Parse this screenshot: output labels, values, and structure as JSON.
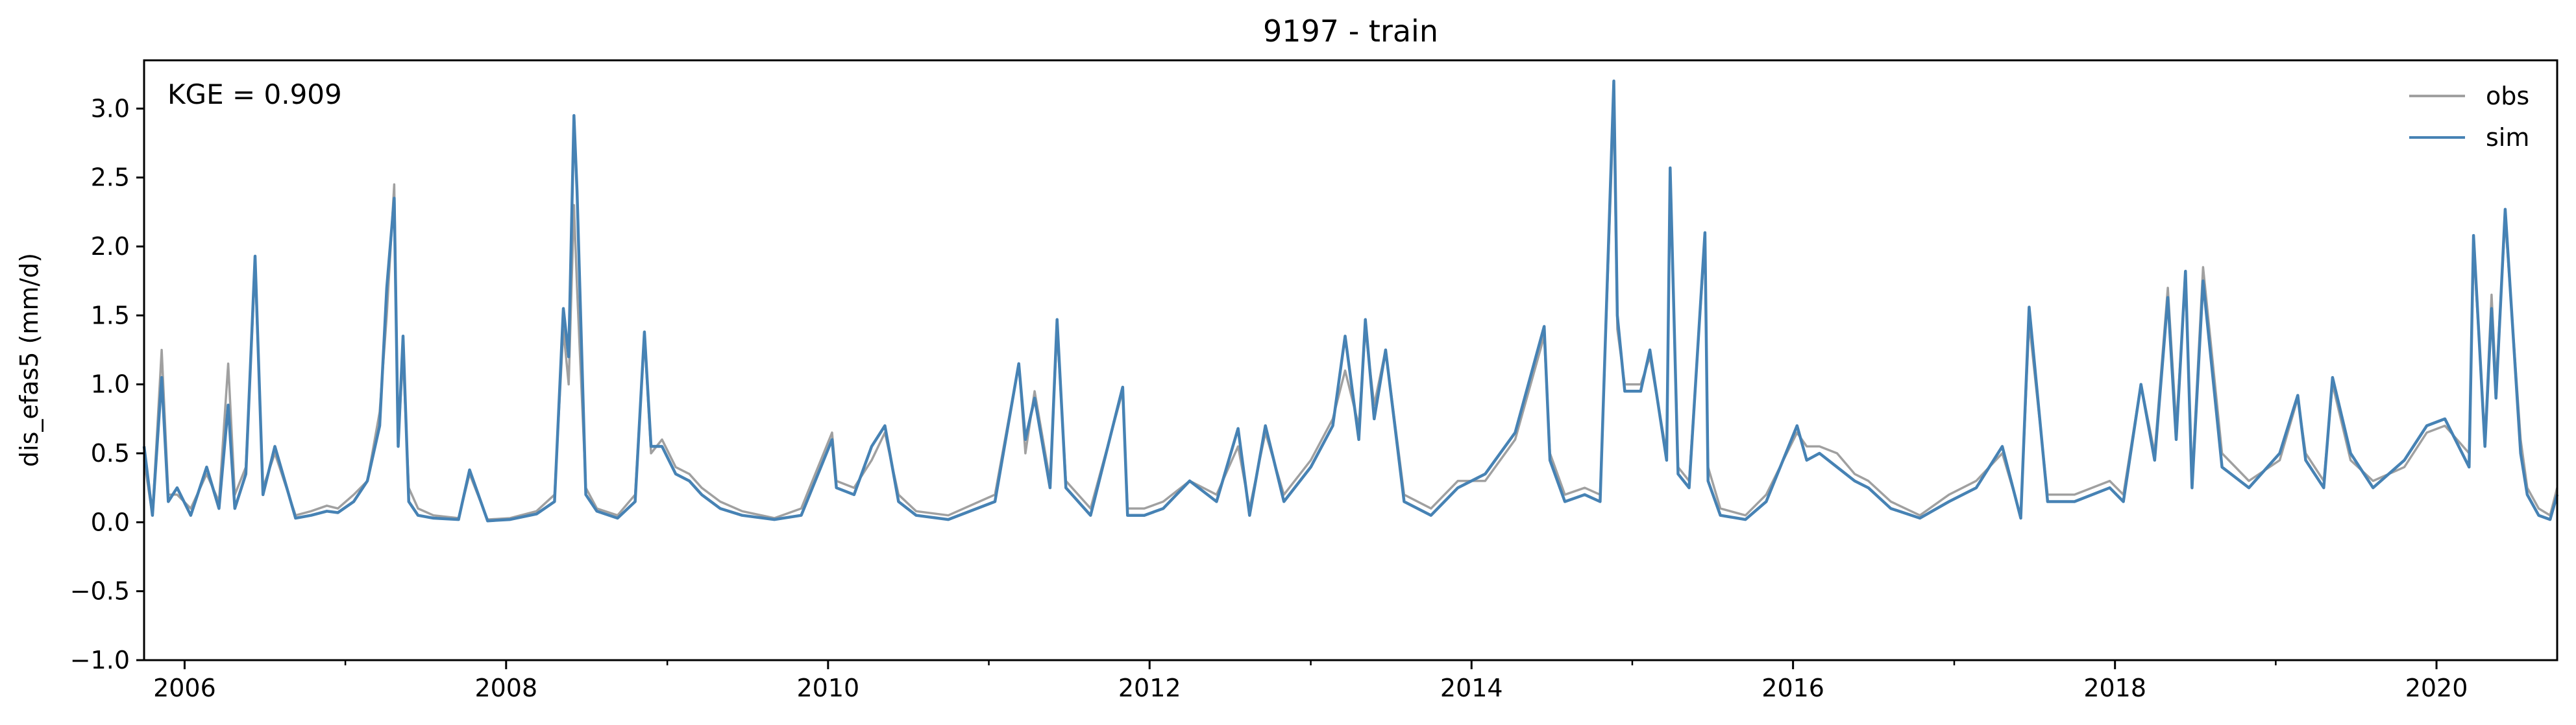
{
  "chart_data": {
    "type": "line",
    "title": "9197 - train",
    "ylabel": "dis_efas5 (mm/d)",
    "xlabel": "",
    "annotation": "KGE = 0.909",
    "xlim": [
      "2005-10-01",
      "2020-10-01"
    ],
    "ylim": [
      -1.0,
      3.35
    ],
    "yticks": [
      -1.0,
      -0.5,
      0.0,
      0.5,
      1.0,
      1.5,
      2.0,
      2.5,
      3.0
    ],
    "ytick_labels": [
      "−1.0",
      "−0.5",
      "0.0",
      "0.5",
      "1.0",
      "1.5",
      "2.0",
      "2.5",
      "3.0"
    ],
    "xticks_major": [
      "2006-01-01",
      "2008-01-01",
      "2010-01-01",
      "2012-01-01",
      "2014-01-01",
      "2016-01-01",
      "2018-01-01",
      "2020-01-01"
    ],
    "xtick_labels": [
      "2006",
      "2008",
      "2010",
      "2012",
      "2014",
      "2016",
      "2018",
      "2020"
    ],
    "xticks_minor": [
      "2007-01-01",
      "2009-01-01",
      "2011-01-01",
      "2013-01-01",
      "2015-01-01",
      "2017-01-01",
      "2019-01-01"
    ],
    "grid": false,
    "legend": "top-right",
    "series": [
      {
        "name": "obs",
        "color": "#a0a0a0",
        "x": [
          "2005-10-01",
          "2005-10-20",
          "2005-11-10",
          "2005-11-25",
          "2005-12-15",
          "2006-01-15",
          "2006-02-20",
          "2006-03-20",
          "2006-04-10",
          "2006-04-25",
          "2006-05-20",
          "2006-06-10",
          "2006-06-28",
          "2006-07-25",
          "2006-09-10",
          "2006-10-15",
          "2006-11-20",
          "2006-12-15",
          "2007-01-20",
          "2007-02-20",
          "2007-03-20",
          "2007-04-05",
          "2007-04-22",
          "2007-05-01",
          "2007-05-12",
          "2007-05-25",
          "2007-06-15",
          "2007-07-20",
          "2007-09-15",
          "2007-10-10",
          "2007-11-20",
          "2008-01-10",
          "2008-03-10",
          "2008-04-20",
          "2008-05-10",
          "2008-05-22",
          "2008-06-03",
          "2008-06-10",
          "2008-06-30",
          "2008-07-25",
          "2008-09-10",
          "2008-10-20",
          "2008-11-10",
          "2008-11-25",
          "2008-12-20",
          "2009-01-20",
          "2009-02-20",
          "2009-03-20",
          "2009-05-01",
          "2009-06-20",
          "2009-09-01",
          "2009-11-01",
          "2010-01-10",
          "2010-01-20",
          "2010-03-01",
          "2010-04-10",
          "2010-05-10",
          "2010-06-10",
          "2010-07-20",
          "2010-10-01",
          "2011-01-15",
          "2011-03-10",
          "2011-03-25",
          "2011-04-15",
          "2011-05-20",
          "2011-06-05",
          "2011-06-25",
          "2011-08-20",
          "2011-11-01",
          "2011-11-12",
          "2011-12-20",
          "2012-02-01",
          "2012-04-01",
          "2012-06-01",
          "2012-07-20",
          "2012-08-15",
          "2012-09-20",
          "2012-11-01",
          "2013-01-01",
          "2013-02-20",
          "2013-03-20",
          "2013-04-20",
          "2013-05-05",
          "2013-05-25",
          "2013-06-20",
          "2013-08-01",
          "2013-10-01",
          "2013-12-01",
          "2014-02-01",
          "2014-04-10",
          "2014-06-15",
          "2014-06-28",
          "2014-08-01",
          "2014-09-15",
          "2014-10-20",
          "2014-11-20",
          "2014-11-28",
          "2014-12-15",
          "2015-01-20",
          "2015-02-10",
          "2015-03-20",
          "2015-03-28",
          "2015-04-15",
          "2015-05-10",
          "2015-06-15",
          "2015-06-22",
          "2015-07-20",
          "2015-09-15",
          "2015-11-01",
          "2016-01-10",
          "2016-02-01",
          "2016-03-01",
          "2016-04-10",
          "2016-05-20",
          "2016-06-20",
          "2016-08-10",
          "2016-10-15",
          "2016-12-20",
          "2017-02-20",
          "2017-04-20",
          "2017-06-01",
          "2017-06-20",
          "2017-08-01",
          "2017-10-01",
          "2017-12-20",
          "2018-01-20",
          "2018-03-01",
          "2018-04-01",
          "2018-05-01",
          "2018-05-20",
          "2018-06-10",
          "2018-06-25",
          "2018-07-20",
          "2018-09-01",
          "2018-11-01",
          "2019-01-10",
          "2019-02-20",
          "2019-03-10",
          "2019-04-20",
          "2019-05-10",
          "2019-06-20",
          "2019-08-10",
          "2019-10-20",
          "2019-12-10",
          "2020-01-20",
          "2020-03-15",
          "2020-03-25",
          "2020-04-20",
          "2020-05-05",
          "2020-05-15",
          "2020-06-05",
          "2020-07-10",
          "2020-07-25",
          "2020-08-20",
          "2020-09-15",
          "2020-10-01"
        ],
        "y": [
          0.45,
          0.05,
          1.25,
          0.2,
          0.2,
          0.1,
          0.35,
          0.15,
          1.15,
          0.2,
          0.4,
          1.85,
          0.25,
          0.5,
          0.05,
          0.08,
          0.12,
          0.1,
          0.2,
          0.3,
          0.8,
          1.5,
          2.45,
          0.6,
          1.2,
          0.25,
          0.1,
          0.05,
          0.03,
          0.35,
          0.02,
          0.03,
          0.08,
          0.2,
          1.4,
          1.0,
          2.3,
          1.7,
          0.25,
          0.1,
          0.05,
          0.2,
          1.35,
          0.5,
          0.6,
          0.4,
          0.35,
          0.25,
          0.15,
          0.08,
          0.03,
          0.1,
          0.65,
          0.3,
          0.25,
          0.45,
          0.65,
          0.2,
          0.08,
          0.05,
          0.2,
          1.15,
          0.5,
          0.95,
          0.3,
          1.4,
          0.3,
          0.1,
          0.95,
          0.1,
          0.1,
          0.15,
          0.3,
          0.2,
          0.55,
          0.1,
          0.65,
          0.2,
          0.45,
          0.75,
          1.1,
          0.7,
          1.4,
          0.85,
          1.25,
          0.2,
          0.1,
          0.3,
          0.3,
          0.6,
          1.35,
          0.5,
          0.2,
          0.25,
          0.2,
          3.05,
          1.4,
          1.0,
          1.0,
          1.2,
          0.5,
          2.5,
          0.4,
          0.3,
          2.05,
          0.4,
          0.1,
          0.05,
          0.2,
          0.65,
          0.55,
          0.55,
          0.5,
          0.35,
          0.3,
          0.15,
          0.05,
          0.2,
          0.3,
          0.5,
          0.05,
          1.45,
          0.2,
          0.2,
          0.3,
          0.2,
          1.0,
          0.5,
          1.7,
          0.7,
          1.75,
          0.3,
          1.85,
          0.5,
          0.3,
          0.45,
          0.9,
          0.5,
          0.3,
          1.0,
          0.45,
          0.3,
          0.4,
          0.65,
          0.7,
          0.5,
          2.0,
          0.6,
          1.65,
          1.0,
          2.2,
          0.6,
          0.25,
          0.1,
          0.05,
          0.25
        ]
      },
      {
        "name": "sim",
        "color": "#4682b4",
        "x": [
          "2005-10-01",
          "2005-10-20",
          "2005-11-10",
          "2005-11-25",
          "2005-12-15",
          "2006-01-15",
          "2006-02-20",
          "2006-03-20",
          "2006-04-10",
          "2006-04-25",
          "2006-05-20",
          "2006-06-10",
          "2006-06-28",
          "2006-07-25",
          "2006-09-10",
          "2006-10-15",
          "2006-11-20",
          "2006-12-15",
          "2007-01-20",
          "2007-02-20",
          "2007-03-20",
          "2007-04-05",
          "2007-04-22",
          "2007-05-01",
          "2007-05-12",
          "2007-05-25",
          "2007-06-15",
          "2007-07-20",
          "2007-09-15",
          "2007-10-10",
          "2007-11-20",
          "2008-01-10",
          "2008-03-10",
          "2008-04-20",
          "2008-05-10",
          "2008-05-22",
          "2008-06-03",
          "2008-06-10",
          "2008-06-30",
          "2008-07-25",
          "2008-09-10",
          "2008-10-20",
          "2008-11-10",
          "2008-11-25",
          "2008-12-20",
          "2009-01-20",
          "2009-02-20",
          "2009-03-20",
          "2009-05-01",
          "2009-06-20",
          "2009-09-01",
          "2009-11-01",
          "2010-01-10",
          "2010-01-20",
          "2010-03-01",
          "2010-04-10",
          "2010-05-10",
          "2010-06-10",
          "2010-07-20",
          "2010-10-01",
          "2011-01-15",
          "2011-03-10",
          "2011-03-25",
          "2011-04-15",
          "2011-05-20",
          "2011-06-05",
          "2011-06-25",
          "2011-08-20",
          "2011-11-01",
          "2011-11-12",
          "2011-12-20",
          "2012-02-01",
          "2012-04-01",
          "2012-06-01",
          "2012-07-20",
          "2012-08-15",
          "2012-09-20",
          "2012-11-01",
          "2013-01-01",
          "2013-02-20",
          "2013-03-20",
          "2013-04-20",
          "2013-05-05",
          "2013-05-25",
          "2013-06-20",
          "2013-08-01",
          "2013-10-01",
          "2013-12-01",
          "2014-02-01",
          "2014-04-10",
          "2014-06-15",
          "2014-06-28",
          "2014-08-01",
          "2014-09-15",
          "2014-10-20",
          "2014-11-20",
          "2014-11-28",
          "2014-12-15",
          "2015-01-20",
          "2015-02-10",
          "2015-03-20",
          "2015-03-28",
          "2015-04-15",
          "2015-05-10",
          "2015-06-15",
          "2015-06-22",
          "2015-07-20",
          "2015-09-15",
          "2015-11-01",
          "2016-01-10",
          "2016-02-01",
          "2016-03-01",
          "2016-04-10",
          "2016-05-20",
          "2016-06-20",
          "2016-08-10",
          "2016-10-15",
          "2016-12-20",
          "2017-02-20",
          "2017-04-20",
          "2017-06-01",
          "2017-06-20",
          "2017-08-01",
          "2017-10-01",
          "2017-12-20",
          "2018-01-20",
          "2018-03-01",
          "2018-04-01",
          "2018-05-01",
          "2018-05-20",
          "2018-06-10",
          "2018-06-25",
          "2018-07-20",
          "2018-09-01",
          "2018-11-01",
          "2019-01-10",
          "2019-02-20",
          "2019-03-10",
          "2019-04-20",
          "2019-05-10",
          "2019-06-20",
          "2019-08-10",
          "2019-10-20",
          "2019-12-10",
          "2020-01-20",
          "2020-03-15",
          "2020-03-25",
          "2020-04-20",
          "2020-05-05",
          "2020-05-15",
          "2020-06-05",
          "2020-07-10",
          "2020-07-25",
          "2020-08-20",
          "2020-09-15",
          "2020-10-01"
        ],
        "y": [
          0.55,
          0.05,
          1.05,
          0.15,
          0.25,
          0.05,
          0.4,
          0.1,
          0.85,
          0.1,
          0.35,
          1.93,
          0.2,
          0.55,
          0.03,
          0.05,
          0.08,
          0.07,
          0.15,
          0.3,
          0.7,
          1.7,
          2.35,
          0.55,
          1.35,
          0.15,
          0.05,
          0.03,
          0.02,
          0.38,
          0.01,
          0.02,
          0.06,
          0.15,
          1.55,
          1.2,
          2.95,
          2.4,
          0.2,
          0.08,
          0.03,
          0.15,
          1.38,
          0.55,
          0.55,
          0.35,
          0.3,
          0.2,
          0.1,
          0.05,
          0.02,
          0.05,
          0.6,
          0.25,
          0.2,
          0.55,
          0.7,
          0.15,
          0.05,
          0.02,
          0.15,
          1.15,
          0.6,
          0.9,
          0.25,
          1.47,
          0.25,
          0.05,
          0.98,
          0.05,
          0.05,
          0.1,
          0.3,
          0.15,
          0.68,
          0.05,
          0.7,
          0.15,
          0.4,
          0.7,
          1.35,
          0.6,
          1.47,
          0.75,
          1.25,
          0.15,
          0.05,
          0.25,
          0.35,
          0.65,
          1.42,
          0.45,
          0.15,
          0.2,
          0.15,
          3.2,
          1.5,
          0.95,
          0.95,
          1.25,
          0.45,
          2.57,
          0.35,
          0.25,
          2.1,
          0.3,
          0.05,
          0.02,
          0.15,
          0.7,
          0.45,
          0.5,
          0.4,
          0.3,
          0.25,
          0.1,
          0.03,
          0.15,
          0.25,
          0.55,
          0.03,
          1.56,
          0.15,
          0.15,
          0.25,
          0.15,
          1.0,
          0.45,
          1.63,
          0.6,
          1.82,
          0.25,
          1.75,
          0.4,
          0.25,
          0.5,
          0.92,
          0.45,
          0.25,
          1.05,
          0.5,
          0.25,
          0.45,
          0.7,
          0.75,
          0.4,
          2.08,
          0.55,
          1.55,
          0.9,
          2.27,
          0.5,
          0.2,
          0.05,
          0.02,
          0.2
        ]
      }
    ]
  }
}
